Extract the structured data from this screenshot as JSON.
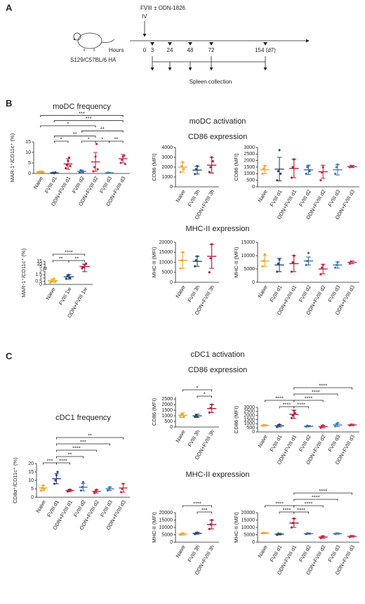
{
  "panel_a": {
    "label": "A",
    "treatment": "FVIII ± ODN-1826",
    "route": "IV",
    "axis_label": "Hours",
    "times": [
      "0",
      "3",
      "24",
      "48",
      "72",
      "154 (d7)"
    ],
    "strain": "S129/C57BL/6 HA",
    "collection": "Spleen collection"
  },
  "panel_b": {
    "label": "B",
    "activation_title": "moDC activation",
    "cd86_title": "CD86 expression",
    "mhc_title": "MHC-II expression"
  },
  "panel_c": {
    "label": "C",
    "activation_title": "cDC1 activation",
    "cd86_title": "CD86 expression",
    "mhc_title": "MHC-II expression"
  },
  "chart_data": [
    {
      "type": "dot",
      "title": "moDC frequency",
      "ylabel": "MAR-1⁺/CD11c⁺ (%)",
      "categories": [
        "Naive",
        "FVIII d1",
        "ODN+FVIII d1",
        "FVIII d2",
        "ODN+FVIII d2",
        "FVIII d3",
        "ODN+FVIII d3"
      ],
      "ylim": [
        0,
        15
      ],
      "yticks": [
        0,
        5,
        10,
        15
      ],
      "groups": [
        {
          "color": "#f0a830",
          "mean": 0.7,
          "sd": 0.3,
          "points": [
            0.5,
            0.9,
            0.6,
            1.0,
            0.7
          ]
        },
        {
          "color": "#2c4a7a",
          "mean": 0.3,
          "sd": 0.2,
          "points": [
            0.2,
            0.4,
            0.1,
            0.5
          ]
        },
        {
          "color": "#b0203c",
          "mean": 4.5,
          "sd": 2.5,
          "points": [
            2.5,
            4,
            6,
            7.5,
            3.5
          ]
        },
        {
          "color": "#3a6fa8",
          "mean": 1.0,
          "sd": 0.6,
          "points": [
            0.5,
            1.5,
            1.2,
            0.8
          ]
        },
        {
          "color": "#c8284a",
          "mean": 5.5,
          "sd": 4.5,
          "points": [
            1,
            3,
            8,
            14,
            2
          ]
        },
        {
          "color": "#4a7fb5",
          "mean": 0.3,
          "sd": 0.2,
          "points": [
            0.2,
            0.4,
            0.3
          ]
        },
        {
          "color": "#c4354d",
          "mean": 7,
          "sd": 2,
          "points": [
            5,
            6.5,
            8,
            8.5,
            4.5
          ]
        }
      ],
      "significance": [
        {
          "label": "*",
          "from": 1,
          "to": 2
        },
        {
          "label": "*",
          "from": 3,
          "to": 4
        },
        {
          "label": "*",
          "from": 4,
          "to": 5
        },
        {
          "label": "**",
          "from": 5,
          "to": 6
        },
        {
          "label": "**",
          "from": 1,
          "to": 4
        },
        {
          "label": "**",
          "from": 3,
          "to": 6
        },
        {
          "label": "*",
          "from": 0,
          "to": 4
        },
        {
          "label": "***",
          "from": 1,
          "to": 6
        },
        {
          "label": "***",
          "from": 0,
          "to": 6
        }
      ]
    },
    {
      "type": "dot",
      "ylabel": "CD86 (MFI)",
      "categories": [
        "Naive",
        "FVIII 3h",
        "ODN+FVIII 3h"
      ],
      "ylim": [
        0,
        4000
      ],
      "yticks": [
        0,
        1000,
        2000,
        3000,
        4000
      ],
      "groups": [
        {
          "color": "#f0a830",
          "mean": 2000,
          "sd": 500,
          "points": [
            1500,
            2100,
            2500,
            1800
          ]
        },
        {
          "color": "#2c4a7a",
          "mean": 1700,
          "sd": 400,
          "points": [
            1300,
            1800,
            2100
          ]
        },
        {
          "color": "#b0203c",
          "mean": 2200,
          "sd": 800,
          "points": [
            1500,
            2000,
            3000,
            2600
          ]
        }
      ],
      "significance": []
    },
    {
      "type": "dot",
      "ylabel": "CD86 (MFI)",
      "categories": [
        "Naive",
        "FVIII d1",
        "ODN+FVIII d1",
        "FVIII d2",
        "ODN+FVIII d2",
        "FVIII d3",
        "ODN+FVIII d3"
      ],
      "ylim": [
        0,
        3000
      ],
      "yticks": [
        0,
        500,
        1000,
        1500,
        2000,
        2500,
        3000
      ],
      "groups": [
        {
          "color": "#f0a830",
          "mean": 1300,
          "sd": 300,
          "points": [
            1000,
            1400,
            1600
          ]
        },
        {
          "color": "#2c4a7a",
          "mean": 1350,
          "sd": 900,
          "points": [
            500,
            1200,
            2800,
            1000
          ]
        },
        {
          "color": "#b0203c",
          "mean": 1400,
          "sd": 700,
          "points": [
            700,
            1500,
            2100
          ]
        },
        {
          "color": "#3a6fa8",
          "mean": 1300,
          "sd": 350,
          "points": [
            1000,
            1500,
            1600,
            1200
          ]
        },
        {
          "color": "#c8284a",
          "mean": 1150,
          "sd": 500,
          "points": [
            500,
            1100,
            1500
          ]
        },
        {
          "color": "#4a7fb5",
          "mean": 1300,
          "sd": 400,
          "points": [
            1000,
            1500,
            1700
          ]
        },
        {
          "color": "#c4354d",
          "mean": 1550,
          "sd": 80,
          "points": [
            1500,
            1600,
            1550
          ]
        }
      ],
      "significance": []
    },
    {
      "type": "dot",
      "ylabel": "MAR-1⁺/CD11c⁺ (%)",
      "categories": [
        "Naive",
        "FVIII 1w",
        "ODN+FVIII 1w"
      ],
      "ylim": [
        0,
        15
      ],
      "ybreak": 2,
      "yticks": [
        0,
        0.5,
        1,
        1.5,
        2,
        5,
        10,
        15
      ],
      "groups": [
        {
          "color": "#f0a830",
          "mean": 0.6,
          "sd": 0.25,
          "points": [
            0.3,
            0.5,
            0.7,
            0.9,
            0.4
          ]
        },
        {
          "color": "#2c4a7a",
          "mean": 1.2,
          "sd": 0.35,
          "points": [
            0.9,
            1.3,
            1.5,
            1.0
          ]
        },
        {
          "color": "#b0203c",
          "mean": 6,
          "sd": 4,
          "points": [
            3,
            5,
            9,
            11
          ]
        }
      ],
      "significance": [
        {
          "label": "**",
          "from": 0,
          "to": 1
        },
        {
          "label": "**",
          "from": 1,
          "to": 2
        },
        {
          "label": "****",
          "from": 0,
          "to": 2
        }
      ]
    },
    {
      "type": "dot",
      "ylabel": "MHC-II (MFI)",
      "categories": [
        "Naive",
        "FVIII 3h",
        "ODN+FVIII 3h"
      ],
      "ylim": [
        0,
        20000
      ],
      "yticks": [
        0,
        5000,
        10000,
        15000,
        20000
      ],
      "groups": [
        {
          "color": "#f0a830",
          "mean": 11000,
          "sd": 4000,
          "points": [
            7000,
            11000,
            15000
          ]
        },
        {
          "color": "#2c4a7a",
          "mean": 10500,
          "sd": 2500,
          "points": [
            8000,
            11000,
            13000
          ]
        },
        {
          "color": "#b0203c",
          "mean": 13000,
          "sd": 6000,
          "points": [
            5000,
            12000,
            19000
          ]
        }
      ],
      "significance": []
    },
    {
      "type": "dot",
      "ylabel": "MHC-II (MFI)",
      "categories": [
        "Naive",
        "FVIII d1",
        "ODN+FVIII d1",
        "FVIII d2",
        "ODN+FVIII d2",
        "FVIII d3",
        "ODN+FVIII d3"
      ],
      "ylim": [
        0,
        15000
      ],
      "yticks": [
        0,
        5000,
        10000,
        15000
      ],
      "groups": [
        {
          "color": "#f0a830",
          "mean": 8000,
          "sd": 2000,
          "points": [
            6000,
            8000,
            10500
          ]
        },
        {
          "color": "#2c4a7a",
          "mean": 6500,
          "sd": 2500,
          "points": [
            4000,
            7000,
            8500
          ]
        },
        {
          "color": "#b0203c",
          "mean": 7000,
          "sd": 3000,
          "points": [
            4000,
            7500,
            10000
          ]
        },
        {
          "color": "#3a6fa8",
          "mean": 8000,
          "sd": 1500,
          "points": [
            6500,
            8000,
            11000
          ]
        },
        {
          "color": "#c8284a",
          "mean": 5000,
          "sd": 1800,
          "points": [
            3000,
            5500,
            6500
          ]
        },
        {
          "color": "#4a7fb5",
          "mean": 6500,
          "sd": 1200,
          "points": [
            5500,
            6500,
            7500
          ]
        },
        {
          "color": "#c4354d",
          "mean": 7500,
          "sd": 500,
          "points": [
            7000,
            7800
          ]
        }
      ],
      "significance": []
    },
    {
      "type": "dot",
      "ylabel": "CD86 (MFI)",
      "categories": [
        "Naive",
        "FVIII 3h",
        "ODN+FVIII 3h"
      ],
      "ylim": [
        0,
        2700
      ],
      "yticks": [
        0,
        500,
        1000,
        1500,
        2000,
        2500
      ],
      "groups": [
        {
          "color": "#f0a830",
          "mean": 1050,
          "sd": 200,
          "points": [
            900,
            1100,
            1200,
            950
          ]
        },
        {
          "color": "#2c4a7a",
          "mean": 1000,
          "sd": 150,
          "points": [
            900,
            1050,
            950
          ]
        },
        {
          "color": "#b0203c",
          "mean": 1650,
          "sd": 350,
          "points": [
            1300,
            1700,
            2000
          ]
        }
      ],
      "significance": [
        {
          "label": "*",
          "from": 1,
          "to": 2
        },
        {
          "label": "*",
          "from": 0,
          "to": 2
        }
      ]
    },
    {
      "type": "dot",
      "ylabel": "CD86 (MFI)",
      "categories": [
        "Naive",
        "FVIII d1",
        "ODN+FVIII d1",
        "FVIII d2",
        "ODN+FVIII d2",
        "FVIII d3",
        "ODN+FVIII d3"
      ],
      "ylim": [
        0,
        3000
      ],
      "yticks": [
        0,
        500,
        1000,
        1500,
        2000,
        2500,
        3000
      ],
      "groups": [
        {
          "color": "#f0a830",
          "mean": 800,
          "sd": 80,
          "points": [
            750,
            850,
            800
          ]
        },
        {
          "color": "#2c4a7a",
          "mean": 750,
          "sd": 150,
          "points": [
            600,
            800,
            900
          ]
        },
        {
          "color": "#b0203c",
          "mean": 2150,
          "sd": 500,
          "points": [
            1700,
            2000,
            2600,
            2300
          ]
        },
        {
          "color": "#3a6fa8",
          "mean": 700,
          "sd": 80,
          "points": [
            650,
            750
          ]
        },
        {
          "color": "#c8284a",
          "mean": 650,
          "sd": 150,
          "points": [
            500,
            700,
            800
          ]
        },
        {
          "color": "#4a7fb5",
          "mean": 850,
          "sd": 200,
          "points": [
            700,
            900,
            1100
          ]
        },
        {
          "color": "#c4354d",
          "mean": 850,
          "sd": 100,
          "points": [
            800,
            900
          ]
        }
      ],
      "significance": [
        {
          "label": "****",
          "from": 1,
          "to": 2
        },
        {
          "label": "****",
          "from": 2,
          "to": 3
        },
        {
          "label": "****",
          "from": 2,
          "to": 4
        },
        {
          "label": "****",
          "from": 0,
          "to": 2
        },
        {
          "label": "****",
          "from": 2,
          "to": 5
        },
        {
          "label": "****",
          "from": 2,
          "to": 6
        }
      ]
    },
    {
      "type": "dot",
      "title": "cDC1 frequency",
      "ylabel": "CD8α⁺/CD11c⁺ (%)",
      "categories": [
        "Naive",
        "FVIII d1",
        "ODN+FVIII d1",
        "FVIII d2",
        "ODN+FVIII d2",
        "FVIII d3",
        "ODN+FVIII d3"
      ],
      "ylim": [
        0,
        20
      ],
      "yticks": [
        0,
        5,
        10,
        15,
        20
      ],
      "groups": [
        {
          "color": "#f0a830",
          "mean": 5.5,
          "sd": 1.5,
          "points": [
            4,
            5.5,
            7,
            5
          ]
        },
        {
          "color": "#2c4a7a",
          "mean": 11,
          "sd": 3,
          "points": [
            8,
            10,
            13,
            15
          ]
        },
        {
          "color": "#b0203c",
          "mean": 4,
          "sd": 0.7,
          "points": [
            3.5,
            4,
            4.5
          ]
        },
        {
          "color": "#3a6fa8",
          "mean": 6,
          "sd": 2.2,
          "points": [
            4,
            6,
            9
          ]
        },
        {
          "color": "#c8284a",
          "mean": 3.5,
          "sd": 1,
          "points": [
            2.5,
            3.5,
            4.5
          ]
        },
        {
          "color": "#4a7fb5",
          "mean": 5,
          "sd": 1,
          "points": [
            4,
            5,
            6
          ]
        },
        {
          "color": "#c4354d",
          "mean": 5.5,
          "sd": 2.5,
          "points": [
            3,
            5,
            8
          ]
        }
      ],
      "significance": [
        {
          "label": "***",
          "from": 0,
          "to": 1
        },
        {
          "label": "****",
          "from": 1,
          "to": 2
        },
        {
          "label": "**",
          "from": 1,
          "to": 3
        },
        {
          "label": "****",
          "from": 1,
          "to": 4
        },
        {
          "label": "***",
          "from": 1,
          "to": 5
        },
        {
          "label": "**",
          "from": 1,
          "to": 6
        }
      ]
    },
    {
      "type": "dot",
      "ylabel": "MHC-II (MFI)",
      "categories": [
        "Naive",
        "FVIII 3h",
        "ODN+FVIII 3h"
      ],
      "ylim": [
        0,
        20000
      ],
      "yticks": [
        0,
        5000,
        10000,
        15000,
        20000
      ],
      "groups": [
        {
          "color": "#f0a830",
          "mean": 5500,
          "sd": 700,
          "points": [
            5000,
            5500,
            6000
          ]
        },
        {
          "color": "#2c4a7a",
          "mean": 6000,
          "sd": 700,
          "points": [
            5500,
            6200,
            6500
          ]
        },
        {
          "color": "#b0203c",
          "mean": 12000,
          "sd": 3000,
          "points": [
            9000,
            12000,
            15000
          ]
        }
      ],
      "significance": [
        {
          "label": "***",
          "from": 1,
          "to": 2
        },
        {
          "label": "****",
          "from": 0,
          "to": 2
        }
      ]
    },
    {
      "type": "dot",
      "ylabel": "MHC-II (MFI)",
      "categories": [
        "Naive",
        "FVIII d1",
        "ODN+FVIII d1",
        "FVIII d2",
        "ODN+FVIII d2",
        "FVIII d3",
        "ODN+FVIII d3"
      ],
      "ylim": [
        0,
        20000
      ],
      "yticks": [
        0,
        5000,
        10000,
        15000,
        20000
      ],
      "groups": [
        {
          "color": "#f0a830",
          "mean": 6200,
          "sd": 400,
          "points": [
            6000,
            6500
          ]
        },
        {
          "color": "#2c4a7a",
          "mean": 5500,
          "sd": 600,
          "points": [
            5000,
            5800
          ]
        },
        {
          "color": "#b0203c",
          "mean": 13000,
          "sd": 3000,
          "points": [
            10000,
            13000,
            16000
          ]
        },
        {
          "color": "#3a6fa8",
          "mean": 5800,
          "sd": 500,
          "points": [
            5500,
            6000
          ]
        },
        {
          "color": "#c8284a",
          "mean": 3500,
          "sd": 800,
          "points": [
            2800,
            3500,
            4000
          ]
        },
        {
          "color": "#4a7fb5",
          "mean": 5800,
          "sd": 500,
          "points": [
            5500,
            6000
          ]
        },
        {
          "color": "#c4354d",
          "mean": 4000,
          "sd": 600,
          "points": [
            3500,
            4200
          ]
        }
      ],
      "significance": [
        {
          "label": "****",
          "from": 1,
          "to": 2
        },
        {
          "label": "****",
          "from": 2,
          "to": 3
        },
        {
          "label": "****",
          "from": 2,
          "to": 4
        },
        {
          "label": "****",
          "from": 0,
          "to": 2
        },
        {
          "label": "****",
          "from": 2,
          "to": 5
        },
        {
          "label": "****",
          "from": 2,
          "to": 6
        }
      ]
    }
  ]
}
